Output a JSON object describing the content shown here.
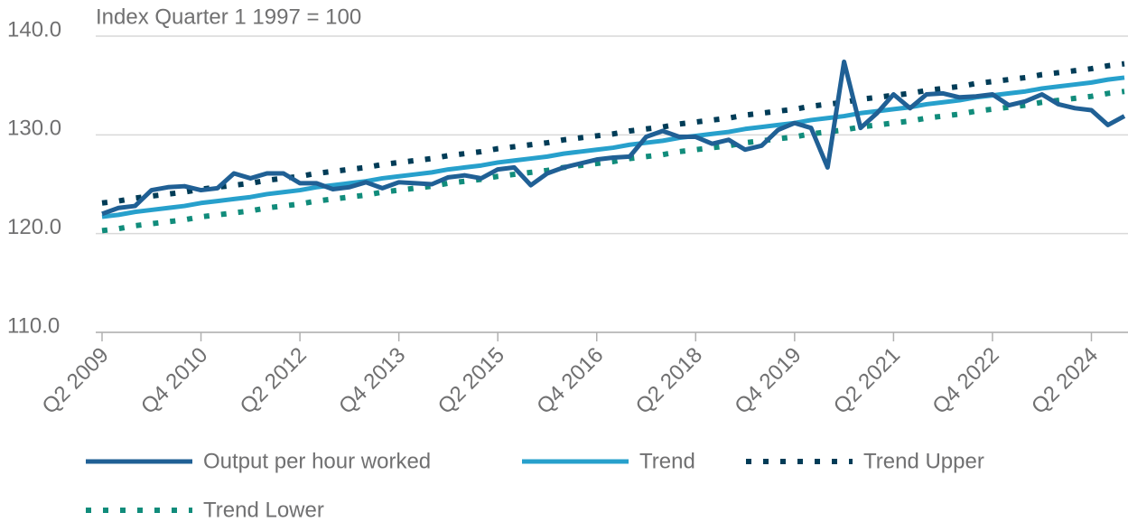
{
  "chart_data": {
    "type": "line",
    "ylabel": "Index Quarter 1 1997 = 100",
    "categories": [
      "Q2 2009",
      null,
      null,
      null,
      null,
      null,
      "Q4 2010",
      null,
      null,
      null,
      null,
      null,
      "Q2 2012",
      null,
      null,
      null,
      null,
      null,
      "Q4 2013",
      null,
      null,
      null,
      null,
      null,
      "Q2 2015",
      null,
      null,
      null,
      null,
      null,
      "Q4 2016",
      null,
      null,
      null,
      null,
      null,
      "Q2 2018",
      null,
      null,
      null,
      null,
      null,
      "Q4 2019",
      null,
      null,
      null,
      null,
      null,
      "Q2 2021",
      null,
      null,
      null,
      null,
      null,
      "Q4 2022",
      null,
      null,
      null,
      null,
      null,
      "Q2 2024",
      null,
      null
    ],
    "series": [
      {
        "name": "Output per hour worked",
        "color": "#206095",
        "style": "solid",
        "values": [
          122.0,
          122.6,
          122.8,
          124.4,
          124.7,
          124.8,
          124.4,
          124.6,
          126.1,
          125.6,
          126.1,
          126.1,
          125.1,
          125.1,
          124.5,
          124.7,
          125.2,
          124.6,
          125.2,
          125.1,
          125.0,
          125.7,
          125.9,
          125.6,
          126.5,
          126.7,
          124.9,
          126.1,
          126.7,
          127.1,
          127.5,
          127.7,
          127.8,
          129.8,
          130.4,
          129.8,
          129.8,
          129.1,
          129.5,
          128.5,
          128.9,
          130.5,
          131.2,
          130.7,
          126.7,
          137.4,
          130.7,
          132.2,
          134.1,
          132.7,
          134.1,
          134.2,
          133.8,
          133.9,
          134.1,
          133.0,
          133.4,
          134.1,
          133.1,
          132.7,
          132.5,
          131.0,
          131.9
        ]
      },
      {
        "name": "Trend",
        "color": "#27a0cc",
        "style": "solid",
        "values": [
          121.7,
          121.9,
          122.2,
          122.4,
          122.6,
          122.8,
          123.1,
          123.3,
          123.5,
          123.7,
          124.0,
          124.2,
          124.4,
          124.7,
          124.9,
          125.1,
          125.3,
          125.6,
          125.8,
          126.0,
          126.2,
          126.5,
          126.7,
          126.9,
          127.2,
          127.4,
          127.6,
          127.8,
          128.1,
          128.3,
          128.5,
          128.7,
          129.0,
          129.2,
          129.4,
          129.7,
          129.9,
          130.1,
          130.3,
          130.6,
          130.8,
          131.0,
          131.2,
          131.5,
          131.7,
          131.9,
          132.2,
          132.4,
          132.6,
          132.8,
          133.1,
          133.3,
          133.5,
          133.8,
          134.0,
          134.2,
          134.4,
          134.7,
          134.9,
          135.1,
          135.3,
          135.6,
          135.8
        ]
      },
      {
        "name": "Trend Upper",
        "color": "#003c57",
        "style": "dotted",
        "values": [
          123.1,
          123.3,
          123.6,
          123.8,
          124.0,
          124.2,
          124.5,
          124.7,
          124.9,
          125.1,
          125.4,
          125.6,
          125.8,
          126.1,
          126.3,
          126.5,
          126.7,
          127.0,
          127.2,
          127.4,
          127.6,
          127.9,
          128.1,
          128.3,
          128.6,
          128.8,
          129.0,
          129.2,
          129.5,
          129.7,
          129.9,
          130.1,
          130.4,
          130.6,
          130.8,
          131.1,
          131.3,
          131.5,
          131.7,
          132.0,
          132.2,
          132.4,
          132.6,
          132.9,
          133.1,
          133.3,
          133.6,
          133.8,
          134.0,
          134.2,
          134.5,
          134.7,
          134.9,
          135.2,
          135.4,
          135.6,
          135.8,
          136.1,
          136.3,
          136.5,
          136.7,
          137.0,
          137.2
        ]
      },
      {
        "name": "Trend Lower",
        "color": "#118c7b",
        "style": "dotted",
        "values": [
          120.3,
          120.5,
          120.8,
          121.0,
          121.2,
          121.4,
          121.7,
          121.9,
          122.1,
          122.3,
          122.6,
          122.8,
          123.0,
          123.3,
          123.5,
          123.7,
          123.9,
          124.2,
          124.4,
          124.6,
          124.8,
          125.1,
          125.3,
          125.5,
          125.8,
          126.0,
          126.2,
          126.4,
          126.7,
          126.9,
          127.1,
          127.3,
          127.6,
          127.8,
          128.0,
          128.3,
          128.5,
          128.7,
          128.9,
          129.2,
          129.4,
          129.6,
          129.8,
          130.1,
          130.3,
          130.5,
          130.8,
          131.0,
          131.2,
          131.4,
          131.7,
          131.9,
          132.1,
          132.4,
          132.6,
          132.8,
          133.0,
          133.3,
          133.5,
          133.7,
          133.9,
          134.2,
          134.4
        ]
      }
    ],
    "ylim": [
      110,
      140
    ],
    "yticks": [
      {
        "value": 110,
        "label": "110.0"
      },
      {
        "value": 120,
        "label": "120.0"
      },
      {
        "value": 130,
        "label": "130.0"
      },
      {
        "value": 140,
        "label": "140.0"
      }
    ],
    "grid": true,
    "legend": "bottom"
  }
}
